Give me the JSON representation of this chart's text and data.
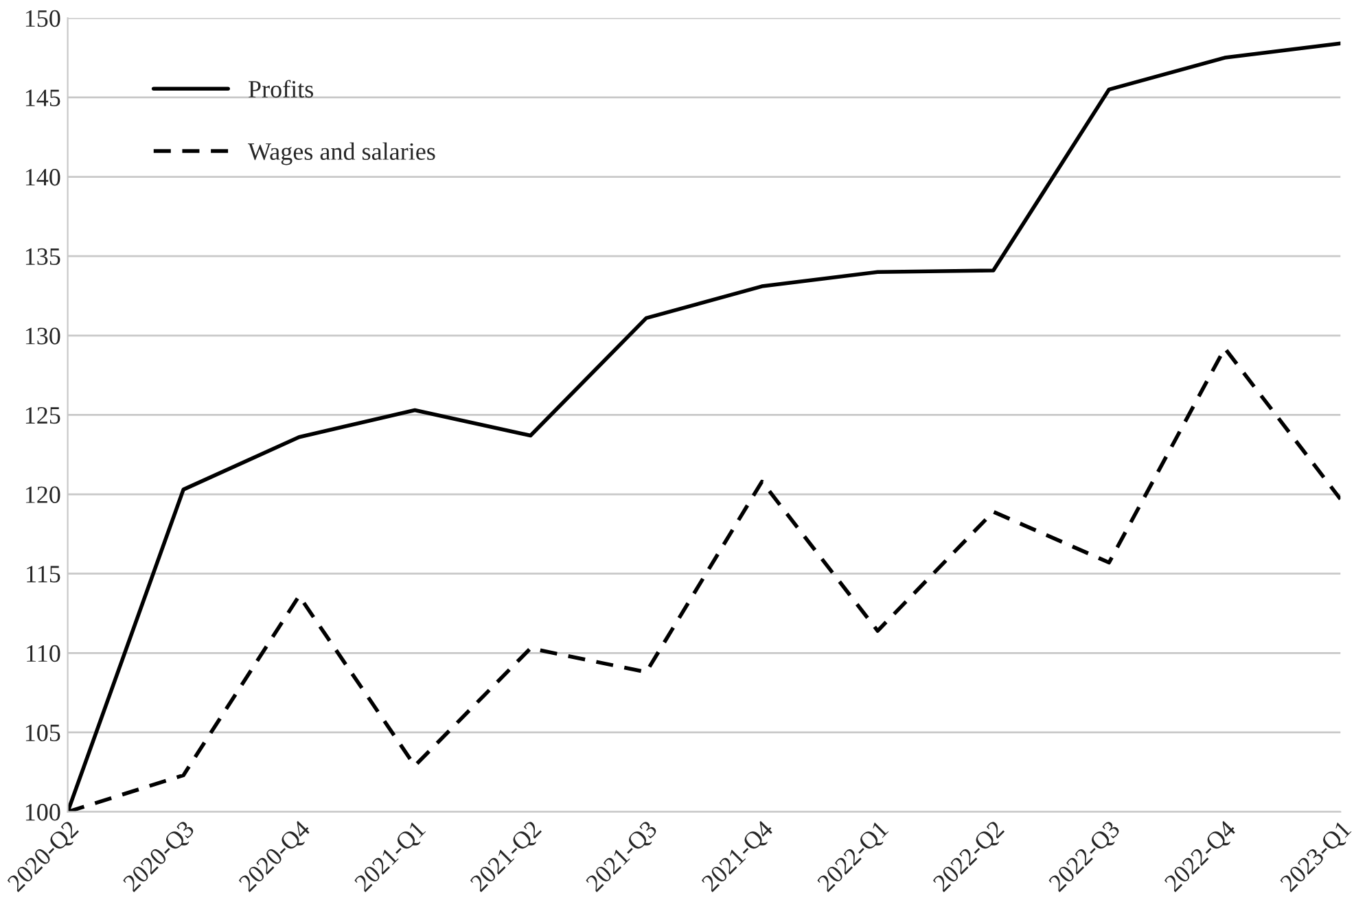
{
  "chart_data": {
    "type": "line",
    "categories": [
      "2020-Q2",
      "2020-Q3",
      "2020-Q4",
      "2021-Q1",
      "2021-Q2",
      "2021-Q3",
      "2021-Q4",
      "2022-Q1",
      "2022-Q2",
      "2022-Q3",
      "2022-Q4",
      "2023-Q1"
    ],
    "series": [
      {
        "name": "Profits",
        "color": "#000000",
        "line_style": "solid",
        "values": [
          100,
          120.3,
          123.6,
          125.3,
          123.7,
          131.1,
          133.1,
          134.0,
          134.1,
          145.5,
          147.5,
          148.4
        ]
      },
      {
        "name": "Wages and salaries",
        "color": "#000000",
        "line_style": "dashed",
        "values": [
          100,
          102.3,
          113.6,
          102.9,
          110.3,
          108.8,
          120.8,
          111.4,
          118.9,
          115.7,
          129.2,
          119.7
        ]
      }
    ],
    "ylim": [
      100,
      150
    ],
    "yticks": [
      100,
      105,
      110,
      115,
      120,
      125,
      130,
      135,
      140,
      145,
      150
    ],
    "grid": "y",
    "legend": "top left",
    "marker": "none"
  }
}
